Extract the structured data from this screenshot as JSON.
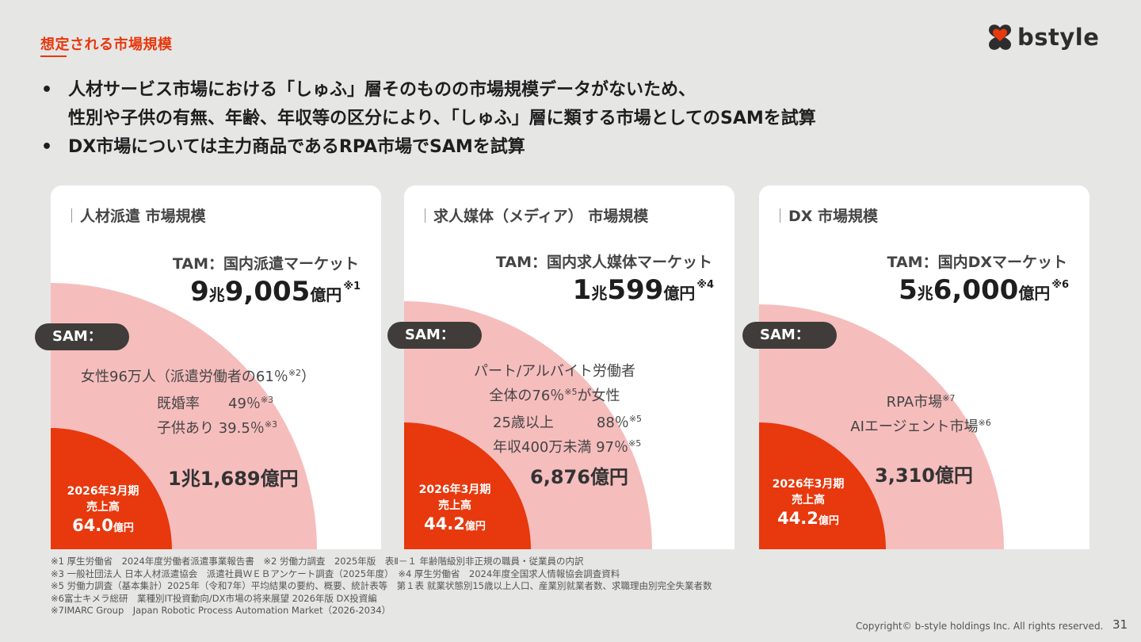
{
  "header": {
    "section_title": "想定される市場規模",
    "logo_text": "bstyle"
  },
  "bullets": [
    {
      "line1": "人材サービス市場における「しゅふ」層そのものの市場規模データがないため、",
      "line2": "性別や子供の有無、年齢、年収等の区分により、「しゅふ」層に類する市場としてのSAMを試算"
    },
    {
      "line1": "DX市場については主力商品であるRPA市場でSAMを試算",
      "line2": ""
    }
  ],
  "bullet_mark": "•",
  "panels": [
    {
      "title": "人材派遣 市場規模",
      "tam_label": "TAM：国内派遣マーケット",
      "tam": {
        "n1": "9",
        "u1": "兆",
        "n2": "9,005",
        "u2": "億円",
        "note": "※1"
      },
      "sam_label": "SAM：",
      "sam_line1": "女性96万人（派遣労働者の61％",
      "sam_line1_note": "※2",
      "sam_line1_tail": "）",
      "sam_line2": "既婚率　　49％",
      "sam_line2_note": "※3",
      "sam_line3": "子供あり 39.5％",
      "sam_line3_note": "※3",
      "sam_value": "1兆1,689億円",
      "sales_l1": "2026年3月期",
      "sales_l2": "売上高",
      "sales_value": "64.0",
      "sales_unit": "億円"
    },
    {
      "title": "求人媒体（メディア） 市場規模",
      "tam_label": "TAM：国内求人媒体マーケット",
      "tam": {
        "n1": "1",
        "u1": "兆",
        "n2": "599",
        "u2": "億円",
        "note": "※4"
      },
      "sam_label": "SAM：",
      "sam_line1": "パート/アルバイト労働者",
      "sam_line2": "全体の76％",
      "sam_line2_note": "※5",
      "sam_line2_tail": "が女性",
      "sam_line3": "25歳以上　　　88％",
      "sam_line3_note": "※5",
      "sam_line4": "年収400万未満 97％",
      "sam_line4_note": "※5",
      "sam_value": "6,876億円",
      "sales_l1": "2026年3月期",
      "sales_l2": "売上高",
      "sales_value": "44.2",
      "sales_unit": "億円"
    },
    {
      "title": "DX 市場規模",
      "tam_label": "TAM：国内DXマーケット",
      "tam": {
        "n1": "5",
        "u1": "兆",
        "n2": "6,000",
        "u2": "億円",
        "note": "※6"
      },
      "sam_label": "SAM：",
      "sam_line1": "RPA市場",
      "sam_line1_note": "※7",
      "sam_line2": "AIエージェント市場",
      "sam_line2_note": "※6",
      "sam_value": "3,310億円",
      "sales_l1": "2026年3月期",
      "sales_l2": "売上高",
      "sales_value": "44.2",
      "sales_unit": "億円"
    }
  ],
  "footnotes": [
    "※1 厚生労働省　2024年度労働者派遣事業報告書　※2 労働力調査　2025年版　表Ⅱ－１ 年齢階級別非正規の職員・従業員の内訳",
    "※3 一般社団法人 日本人材派遣協会　派遣社員ＷＥＢアンケート調査（2025年度）　※4 厚生労働省　2024年度全国求人情報協会調査資料",
    "※5 労働力調査（基本集計）2025年（令和7年）平均結果の要約、概要、統計表等　第１表 就業状態別15歳以上人口、産業別就業者数、求職理由別完全失業者数",
    "※6富士キメラ総研　業種別IT投資動向/DX市場の将来展望 2026年版 DX投資編",
    "※7IMARC Group　Japan Robotic Process Automation Market（2026-2034）"
  ],
  "footer": {
    "copyright": "Copyright© b-style holdings Inc. All rights reserved.",
    "page_number": "31"
  },
  "colors": {
    "accent": "#e8380d",
    "sam_fill": "#f6bdbd",
    "pill": "#3f3c3a",
    "background": "#e6e6e5"
  }
}
